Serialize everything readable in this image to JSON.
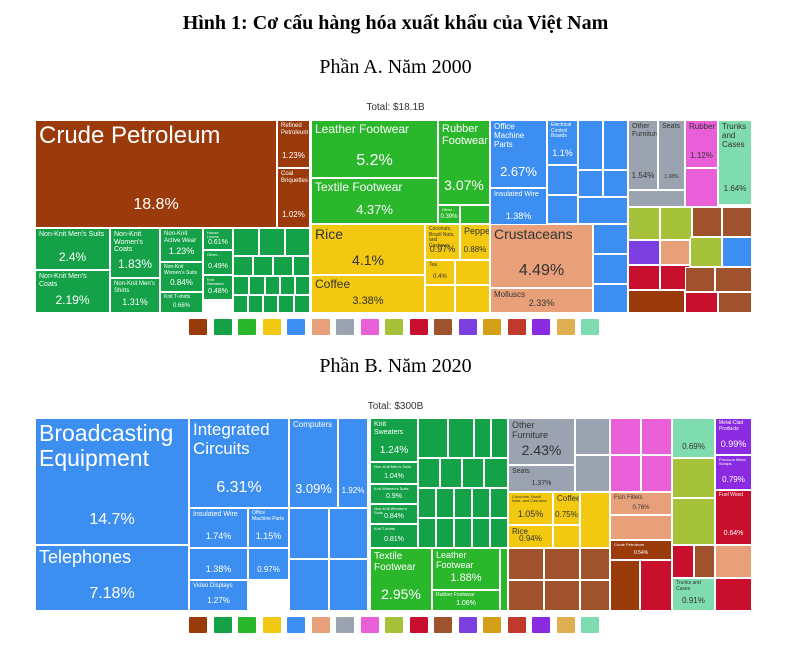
{
  "title": "Hình 1: Cơ cấu hàng hóa xuất khẩu của Việt Nam",
  "panels": [
    {
      "subtitle": "Phần A. Năm 2000",
      "total": "Total: $18.1B",
      "cells": [
        {
          "label": "Crude Petroleum",
          "value": 18.8,
          "value_label": "18.8%",
          "color": "#9b3b0c"
        },
        {
          "label": "Refined Petroleum",
          "value": 1.23,
          "value_label": "1.23%",
          "color": "#9b3b0c"
        },
        {
          "label": "Coal Briquettes",
          "value": 1.02,
          "value_label": "1.02%",
          "color": "#9b3b0c"
        },
        {
          "label": "Non-Knit Men's Suits",
          "value": 2.4,
          "value_label": "2.4%",
          "color": "#14a147"
        },
        {
          "label": "Non-Knit Men's Coats",
          "value": 2.19,
          "value_label": "2.19%",
          "color": "#14a147"
        },
        {
          "label": "Non-Knit Women's Coats",
          "value": 1.83,
          "value_label": "1.83%",
          "color": "#14a147"
        },
        {
          "label": "Non-Knit Men's Shirts",
          "value": 1.31,
          "value_label": "1.31%",
          "color": "#14a147"
        },
        {
          "label": "Non-Knit Active Wear",
          "value": 1.23,
          "value_label": "1.23%",
          "color": "#14a147"
        },
        {
          "label": "Non-Knit Women's Suits",
          "value": 0.84,
          "value_label": "0.84%",
          "color": "#14a147"
        },
        {
          "label": "Knit T-shirts",
          "value": 0.66,
          "value_label": "0.66%",
          "color": "#14a147"
        },
        {
          "label": "House Linens",
          "value": 0.61,
          "value_label": "0.61%",
          "color": "#14a147"
        },
        {
          "label": "Other...",
          "value": 0.49,
          "value_label": "0.49%",
          "color": "#14a147"
        },
        {
          "label": "Knit Sweaters",
          "value": 0.48,
          "value_label": "0.48%",
          "color": "#14a147"
        },
        {
          "label": "Leather Footwear",
          "value": 5.2,
          "value_label": "5.2%",
          "color": "#2bb72b"
        },
        {
          "label": "Textile Footwear",
          "value": 4.37,
          "value_label": "4.37%",
          "color": "#2bb72b"
        },
        {
          "label": "Rubber Footwear",
          "value": 3.07,
          "value_label": "3.07%",
          "color": "#2bb72b"
        },
        {
          "label": "Other...",
          "value": 0.39,
          "value_label": "0.39%",
          "color": "#2bb72b"
        },
        {
          "label": "Rice",
          "value": 4.1,
          "value_label": "4.1%",
          "color": "#f2c811"
        },
        {
          "label": "Coffee",
          "value": 3.38,
          "value_label": "3.38%",
          "color": "#f2c811"
        },
        {
          "label": "Pepper",
          "value": 0.88,
          "value_label": "0.88%",
          "color": "#f2c811"
        },
        {
          "label": "Coconuts, Brazil Nuts, and Cashews",
          "value": 0.97,
          "value_label": "0.97%",
          "color": "#f2c811"
        },
        {
          "label": "Tea",
          "value": 0.4,
          "value_label": "0.4%",
          "color": "#f2c811"
        },
        {
          "label": "Office Machine Parts",
          "value": 2.67,
          "value_label": "2.67%",
          "color": "#3c8ff0"
        },
        {
          "label": "Insulated Wire",
          "value": 1.38,
          "value_label": "1.38%",
          "color": "#3c8ff0"
        },
        {
          "label": "Electrical Control Boards",
          "value": 1.1,
          "value_label": "1.1%",
          "color": "#3c8ff0"
        },
        {
          "label": "Crustaceans",
          "value": 4.49,
          "value_label": "4.49%",
          "color": "#e8a07a"
        },
        {
          "label": "Molluscs",
          "value": 2.33,
          "value_label": "2.33%",
          "color": "#e8a07a"
        },
        {
          "label": "Other Furniture",
          "value": 1.54,
          "value_label": "1.54%",
          "color": "#9ba3b0"
        },
        {
          "label": "Seats",
          "value": 1.08,
          "value_label": "1.08%",
          "color": "#9ba3b0"
        },
        {
          "label": "Rubber",
          "value": 1.12,
          "value_label": "1.12%",
          "color": "#e85fd8"
        },
        {
          "label": "Trunks and Cases",
          "value": 1.64,
          "value_label": "1.64%",
          "color": "#7fdcae"
        }
      ]
    },
    {
      "subtitle": "Phần B. Năm 2020",
      "total": "Total: $300B",
      "cells": [
        {
          "label": "Broadcasting Equipment",
          "value": 14.7,
          "value_label": "14.7%",
          "color": "#3c8ff0"
        },
        {
          "label": "Telephones",
          "value": 7.18,
          "value_label": "7.18%",
          "color": "#3c8ff0"
        },
        {
          "label": "Integrated Circuits",
          "value": 6.31,
          "value_label": "6.31%",
          "color": "#3c8ff0"
        },
        {
          "label": "Insulated Wire",
          "value": 1.74,
          "value_label": "1.74%",
          "color": "#3c8ff0"
        },
        {
          "label": "Office Machine Parts",
          "value": 1.15,
          "value_label": "1.15%",
          "color": "#3c8ff0"
        },
        {
          "value": 1.38,
          "value_label": "1.38%",
          "color": "#3c8ff0"
        },
        {
          "label": "Video Displays",
          "value": 1.27,
          "value_label": "1.27%",
          "color": "#3c8ff0"
        },
        {
          "value": 0.97,
          "value_label": "0.97%",
          "color": "#3c8ff0"
        },
        {
          "label": "Computers",
          "value": 3.09,
          "value_label": "3.09%",
          "color": "#3c8ff0"
        },
        {
          "value": 1.92,
          "value_label": "1.92%",
          "color": "#3c8ff0"
        },
        {
          "label": "Knit Sweaters",
          "value": 1.24,
          "value_label": "1.24%",
          "color": "#14a147"
        },
        {
          "label": "Non-Knit Men's Suits",
          "value": 1.04,
          "value_label": "1.04%",
          "color": "#14a147"
        },
        {
          "label": "Knit Women's Suits",
          "value": 0.9,
          "value_label": "0.9%",
          "color": "#14a147"
        },
        {
          "label": "Non-Knit Women's Suits",
          "value": 0.84,
          "value_label": "0.84%",
          "color": "#14a147"
        },
        {
          "label": "Knit T-shirts",
          "value": 0.81,
          "value_label": "0.81%",
          "color": "#14a147"
        },
        {
          "label": "Textile Footwear",
          "value": 2.95,
          "value_label": "2.95%",
          "color": "#2bb72b"
        },
        {
          "label": "Leather Footwear",
          "value": 1.88,
          "value_label": "1.88%",
          "color": "#2bb72b"
        },
        {
          "label": "Rubber Footwear",
          "value": 1.06,
          "value_label": "1.06%",
          "color": "#2bb72b"
        },
        {
          "label": "Other Furniture",
          "value": 2.43,
          "value_label": "2.43%",
          "color": "#9ba3b0"
        },
        {
          "label": "Seats",
          "value": 1.37,
          "value_label": "1.37%",
          "color": "#9ba3b0"
        },
        {
          "label": "Coconuts, Brazil Nuts, and Cashews",
          "value": 1.05,
          "value_label": "1.05%",
          "color": "#f2c811"
        },
        {
          "label": "Rice",
          "value": 0.94,
          "value_label": "0.94%",
          "color": "#f2c811"
        },
        {
          "label": "Coffee",
          "value": 0.75,
          "value_label": "0.75%",
          "color": "#f2c811"
        },
        {
          "label": "Fish Fillets",
          "value": 0.76,
          "value_label": "0.76%",
          "color": "#e8a07a"
        },
        {
          "value": 0.69,
          "value_label": "0.69%",
          "color": "#7fdcae"
        },
        {
          "label": "Metal-Clad Products",
          "value": 0.99,
          "value_label": "0.99%",
          "color": "#8a2be2"
        },
        {
          "label": "Precious Metal Scraps",
          "value": 0.79,
          "value_label": "0.79%",
          "color": "#8a2be2"
        },
        {
          "label": "Fuel Wood",
          "value": 0.64,
          "value_label": "0.64%",
          "color": "#c8102e"
        },
        {
          "label": "Crude Petroleum",
          "value": 0.54,
          "value_label": "0.54%",
          "color": "#9b3b0c"
        },
        {
          "label": "Trunks and Cases",
          "value": 0.91,
          "value_label": "0.91%",
          "color": "#7fdcae"
        }
      ]
    }
  ]
}
